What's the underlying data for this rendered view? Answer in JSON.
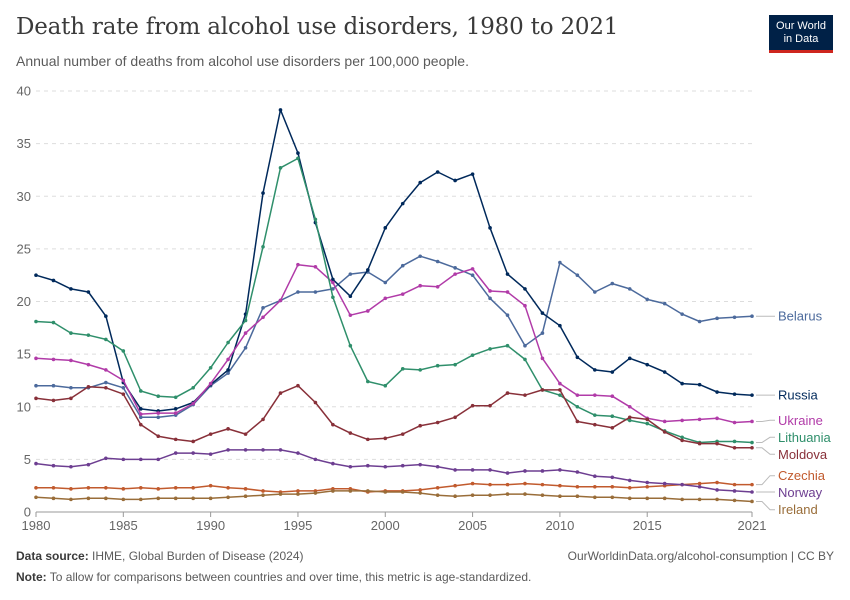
{
  "header": {
    "title": "Death rate from alcohol use disorders, 1980 to 2021",
    "subtitle": "Annual number of deaths from alcohol use disorders per 100,000 people.",
    "logo_line1": "Our World",
    "logo_line2": "in Data"
  },
  "footer": {
    "source_label": "Data source:",
    "source_text": "IHME, Global Burden of Disease (2024)",
    "credit": "OurWorldinData.org/alcohol-consumption | CC BY",
    "note_label": "Note:",
    "note_text": "To allow for comparisons between countries and over time, this metric is age-standardized."
  },
  "chart_data": {
    "type": "line",
    "xlim": [
      1980,
      2021
    ],
    "ylim": [
      0,
      40
    ],
    "grid": true,
    "x_ticks": [
      1980,
      1985,
      1990,
      1995,
      2000,
      2005,
      2010,
      2015,
      2021
    ],
    "y_ticks": [
      0,
      5,
      10,
      15,
      20,
      25,
      30,
      35,
      40
    ],
    "x": [
      1980,
      1981,
      1982,
      1983,
      1984,
      1985,
      1986,
      1987,
      1988,
      1989,
      1990,
      1991,
      1992,
      1993,
      1994,
      1995,
      1996,
      1997,
      1998,
      1999,
      2000,
      2001,
      2002,
      2003,
      2004,
      2005,
      2006,
      2007,
      2008,
      2009,
      2010,
      2011,
      2012,
      2013,
      2014,
      2015,
      2016,
      2017,
      2018,
      2019,
      2020,
      2021
    ],
    "series": [
      {
        "name": "Belarus",
        "color": "#4c6a9c",
        "values": [
          12.0,
          12.0,
          11.8,
          11.8,
          12.3,
          11.8,
          9.0,
          9.0,
          9.2,
          10.2,
          12.0,
          13.2,
          15.6,
          19.4,
          20.1,
          20.9,
          20.9,
          21.2,
          22.6,
          22.8,
          21.8,
          23.4,
          24.3,
          23.8,
          23.2,
          22.5,
          20.3,
          18.7,
          15.8,
          17.0,
          23.7,
          22.5,
          20.9,
          21.7,
          21.2,
          20.2,
          19.8,
          18.8,
          18.1,
          18.4,
          18.5,
          18.6
        ]
      },
      {
        "name": "Russia",
        "color": "#00295b",
        "values": [
          22.5,
          22.0,
          21.2,
          20.9,
          18.6,
          12.3,
          9.8,
          9.6,
          9.8,
          10.4,
          12.1,
          13.5,
          18.8,
          30.3,
          38.2,
          34.1,
          27.5,
          22.1,
          20.5,
          23.0,
          27.0,
          29.3,
          31.3,
          32.3,
          31.5,
          32.1,
          27.0,
          22.6,
          21.2,
          18.9,
          17.7,
          14.7,
          13.5,
          13.3,
          14.6,
          14.0,
          13.3,
          12.2,
          12.1,
          11.4,
          11.2,
          11.1
        ]
      },
      {
        "name": "Ukraine",
        "color": "#b13ba8",
        "values": [
          14.6,
          14.5,
          14.4,
          14.0,
          13.5,
          12.5,
          9.3,
          9.4,
          9.4,
          10.3,
          12.2,
          14.5,
          17.0,
          18.5,
          20.1,
          23.5,
          23.3,
          21.8,
          18.7,
          19.1,
          20.3,
          20.7,
          21.5,
          21.4,
          22.6,
          23.1,
          21.0,
          20.9,
          19.6,
          14.6,
          12.2,
          11.1,
          11.1,
          11.0,
          10.0,
          8.9,
          8.6,
          8.7,
          8.8,
          8.9,
          8.5,
          8.6
        ]
      },
      {
        "name": "Lithuania",
        "color": "#2f8f6b",
        "values": [
          18.1,
          18.0,
          17.0,
          16.8,
          16.4,
          15.3,
          11.5,
          11.0,
          10.9,
          11.8,
          13.7,
          16.1,
          18.2,
          25.2,
          32.7,
          33.6,
          27.8,
          20.4,
          15.8,
          12.4,
          12.0,
          13.6,
          13.5,
          13.9,
          14.0,
          14.9,
          15.5,
          15.8,
          14.5,
          11.6,
          11.1,
          10.0,
          9.2,
          9.1,
          8.7,
          8.4,
          7.7,
          7.1,
          6.6,
          6.7,
          6.7,
          6.6
        ]
      },
      {
        "name": "Moldova",
        "color": "#883039",
        "values": [
          10.8,
          10.6,
          10.8,
          11.9,
          11.8,
          11.2,
          8.3,
          7.2,
          6.9,
          6.7,
          7.4,
          7.9,
          7.4,
          8.8,
          11.3,
          12.0,
          10.4,
          8.3,
          7.5,
          6.9,
          7.0,
          7.4,
          8.2,
          8.5,
          9.0,
          10.1,
          10.1,
          11.3,
          11.1,
          11.6,
          11.6,
          8.6,
          8.3,
          8.0,
          9.0,
          8.8,
          7.6,
          6.8,
          6.5,
          6.5,
          6.1,
          6.1
        ]
      },
      {
        "name": "Czechia",
        "color": "#c15a2d",
        "values": [
          2.3,
          2.3,
          2.2,
          2.3,
          2.3,
          2.2,
          2.3,
          2.2,
          2.3,
          2.3,
          2.5,
          2.3,
          2.2,
          2.0,
          1.9,
          2.0,
          2.0,
          2.2,
          2.2,
          1.9,
          2.0,
          2.0,
          2.1,
          2.3,
          2.5,
          2.7,
          2.6,
          2.6,
          2.7,
          2.6,
          2.5,
          2.4,
          2.4,
          2.4,
          2.3,
          2.4,
          2.5,
          2.6,
          2.7,
          2.8,
          2.6,
          2.6
        ]
      },
      {
        "name": "Norway",
        "color": "#6d3e91",
        "values": [
          4.6,
          4.4,
          4.3,
          4.5,
          5.1,
          5.0,
          5.0,
          5.0,
          5.6,
          5.6,
          5.5,
          5.9,
          5.9,
          5.9,
          5.9,
          5.6,
          5.0,
          4.6,
          4.3,
          4.4,
          4.3,
          4.4,
          4.5,
          4.3,
          4.0,
          4.0,
          4.0,
          3.7,
          3.9,
          3.9,
          4.0,
          3.8,
          3.4,
          3.3,
          3.0,
          2.8,
          2.7,
          2.6,
          2.4,
          2.1,
          2.0,
          1.9
        ]
      },
      {
        "name": "Ireland",
        "color": "#996d39",
        "values": [
          1.4,
          1.3,
          1.2,
          1.3,
          1.3,
          1.2,
          1.2,
          1.3,
          1.3,
          1.3,
          1.3,
          1.4,
          1.5,
          1.6,
          1.7,
          1.7,
          1.8,
          2.0,
          2.0,
          2.0,
          1.9,
          1.9,
          1.8,
          1.6,
          1.5,
          1.6,
          1.6,
          1.7,
          1.7,
          1.6,
          1.5,
          1.5,
          1.4,
          1.4,
          1.3,
          1.3,
          1.3,
          1.2,
          1.2,
          1.2,
          1.1,
          1.0
        ]
      }
    ]
  }
}
